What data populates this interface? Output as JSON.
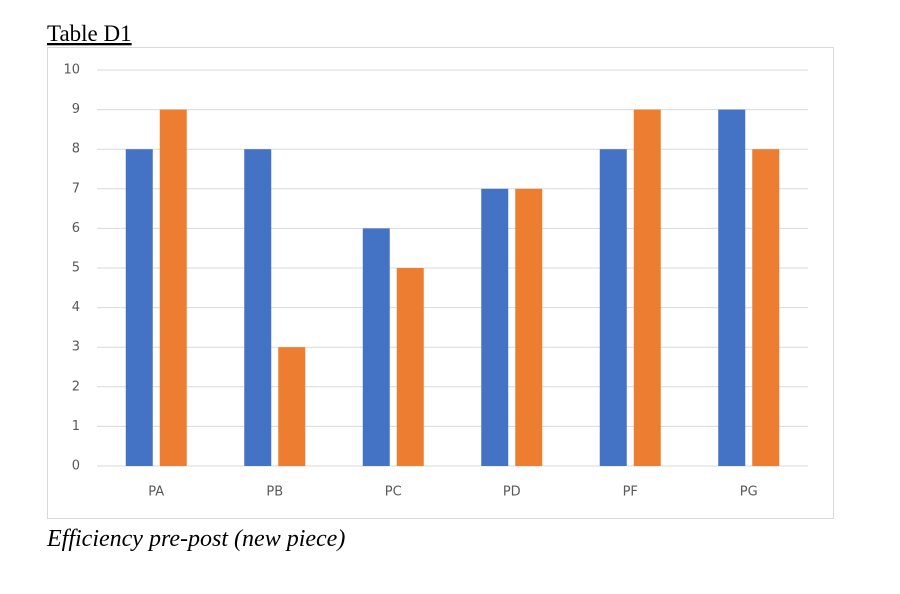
{
  "chart_data": {
    "type": "bar",
    "title": "Table D1",
    "caption": "Efficiency pre-post (new piece)",
    "categories": [
      "PA",
      "PB",
      "PC",
      "PD",
      "PF",
      "PG"
    ],
    "series": [
      {
        "color": "#4472c4",
        "values": [
          8,
          8,
          6,
          7,
          8,
          9
        ]
      },
      {
        "color": "#ed7d31",
        "values": [
          9,
          3,
          5,
          7,
          9,
          8
        ]
      }
    ],
    "ylim": [
      0,
      10
    ],
    "yticks": [
      0,
      1,
      2,
      3,
      4,
      5,
      6,
      7,
      8,
      9,
      10
    ],
    "grid": true
  }
}
